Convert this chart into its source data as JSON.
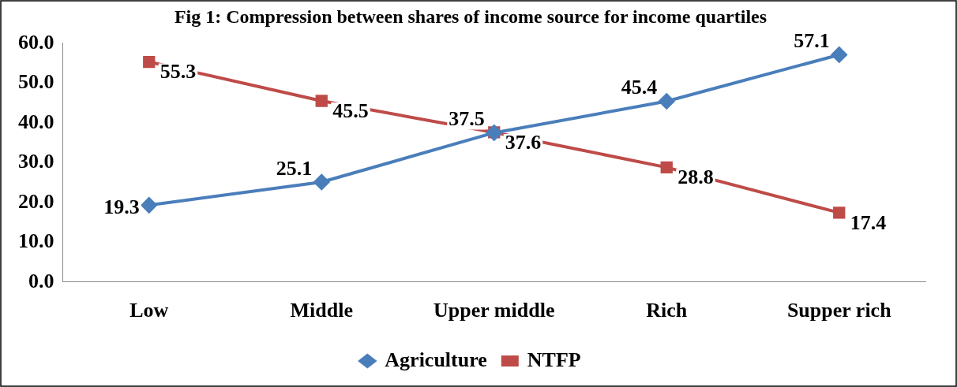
{
  "chart_data": {
    "type": "line",
    "title": "Fig 1: Compression between shares of income source for income quartiles",
    "categories": [
      "Low",
      "Middle",
      "Upper middle",
      "Rich",
      "Supper rich"
    ],
    "series": [
      {
        "name": "Agriculture",
        "color": "#4a7ebb",
        "values": [
          19.3,
          25.1,
          37.5,
          45.4,
          57.1
        ],
        "marker": "diamond"
      },
      {
        "name": "NTFP",
        "color": "#be4b48",
        "values": [
          55.3,
          45.5,
          37.6,
          28.8,
          17.4
        ],
        "marker": "square"
      }
    ],
    "ylim": [
      0,
      60
    ],
    "yticks": [
      {
        "value": 0,
        "label": "0.0"
      },
      {
        "value": 10,
        "label": "10.0"
      },
      {
        "value": 20,
        "label": "20.0"
      },
      {
        "value": 30,
        "label": "30.0"
      },
      {
        "value": 40,
        "label": "40.0"
      },
      {
        "value": 50,
        "label": "50.0"
      },
      {
        "value": 60,
        "label": "60.0"
      }
    ],
    "grid": false,
    "legend": "bottom",
    "data_labels": true
  }
}
